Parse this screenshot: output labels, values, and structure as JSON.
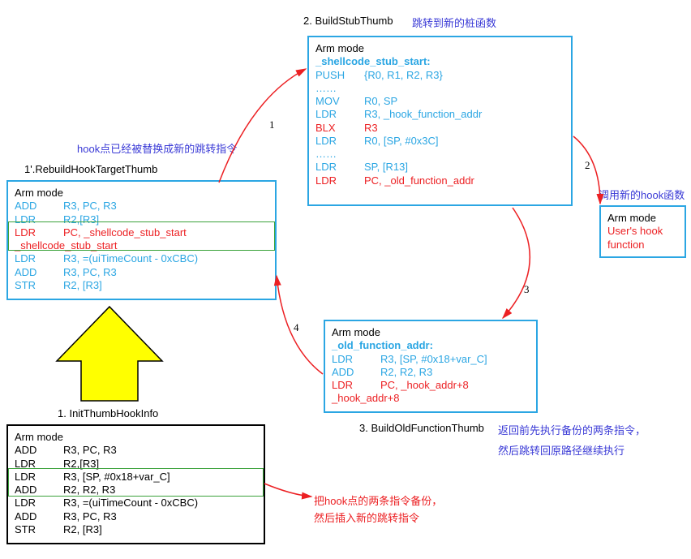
{
  "captions": {
    "step2_title": "2. BuildStubThumb",
    "step2_sub": "跳转到新的桩函数",
    "hook_note": "hook点已经被替换成新的跳转指令",
    "step1prime": "1'.RebuildHookTargetThumb",
    "call_hook": "调用新的hook函数",
    "step1": "1. InitThumbHookInfo",
    "step3_title": "3. BuildOldFunctionThumb",
    "step3_sub1": "返回前先执行备份的两条指令，",
    "step3_sub2": "然后跳转回原路径继续执行",
    "backup1": "把hook点的两条指令备份，",
    "backup2": "然后插入新的跳转指令"
  },
  "box_top": {
    "mode": "Arm mode",
    "label": "_shellcode_stub_start:",
    "lines": [
      {
        "c": "cyan",
        "op": "PUSH",
        "arg": "{R0, R1, R2, R3}"
      },
      {
        "c": "cyan",
        "op": "……",
        "arg": ""
      },
      {
        "c": "cyan",
        "op": "MOV",
        "arg": "R0, SP"
      },
      {
        "c": "cyan",
        "op": "LDR",
        "arg": "R3, _hook_function_addr"
      },
      {
        "c": "red",
        "op": "BLX",
        "arg": "R3"
      },
      {
        "c": "cyan",
        "op": "LDR",
        "arg": "R0, [SP, #0x3C]"
      },
      {
        "c": "cyan",
        "op": "……",
        "arg": ""
      },
      {
        "c": "cyan",
        "op": "LDR",
        "arg": "SP, [R13]"
      },
      {
        "c": "red",
        "op": "LDR",
        "arg": "PC, _old_function_addr"
      }
    ]
  },
  "box_left": {
    "mode": "Arm mode",
    "lines": [
      {
        "c": "cyan",
        "op": "ADD",
        "arg": "R3, PC, R3"
      },
      {
        "c": "cyan",
        "op": "LDR",
        "arg": "R2,[R3]"
      },
      {
        "c": "red",
        "op": "LDR",
        "arg": "PC, _shellcode_stub_start"
      },
      {
        "c": "red",
        "op": "_shellcode_stub_start",
        "arg": "",
        "full": true
      },
      {
        "c": "cyan",
        "op": "LDR",
        "arg": "R3, =(uiTimeCount - 0xCBC)"
      },
      {
        "c": "cyan",
        "op": "ADD",
        "arg": "R3, PC, R3"
      },
      {
        "c": "cyan",
        "op": "STR",
        "arg": "R2, [R3]"
      }
    ]
  },
  "box_hook": {
    "mode": "Arm mode",
    "l1": "User's hook",
    "l2": "function"
  },
  "box_old": {
    "mode": "Arm mode",
    "label": "_old_function_addr:",
    "lines": [
      {
        "c": "cyan",
        "op": "LDR",
        "arg": "R3, [SP, #0x18+var_C]"
      },
      {
        "c": "cyan",
        "op": "ADD",
        "arg": "R2, R2, R3"
      },
      {
        "c": "red",
        "op": "LDR",
        "arg": "PC, _hook_addr+8"
      },
      {
        "c": "red",
        "op": "_hook_addr+8",
        "arg": "",
        "full": true
      }
    ]
  },
  "box_bottom": {
    "mode": "Arm mode",
    "lines": [
      {
        "c": "black",
        "op": "ADD",
        "arg": "R3, PC, R3"
      },
      {
        "c": "black",
        "op": "LDR",
        "arg": "R2,[R3]"
      },
      {
        "c": "black",
        "op": "LDR",
        "arg": "R3, [SP, #0x18+var_C]"
      },
      {
        "c": "black",
        "op": "ADD",
        "arg": "R2, R2, R3"
      },
      {
        "c": "black",
        "op": "LDR",
        "arg": "R3, =(uiTimeCount - 0xCBC)"
      },
      {
        "c": "black",
        "op": "ADD",
        "arg": "R3, PC, R3"
      },
      {
        "c": "black",
        "op": "STR",
        "arg": "R2, [R3]"
      }
    ]
  },
  "nums": {
    "n1": "1",
    "n2": "2",
    "n3": "3",
    "n4": "4"
  },
  "colors": {
    "cyan": "#2ba6e3",
    "red": "#ec2023",
    "purple": "#3a3ad6",
    "black": "#000000",
    "green": "#3aa23a"
  }
}
